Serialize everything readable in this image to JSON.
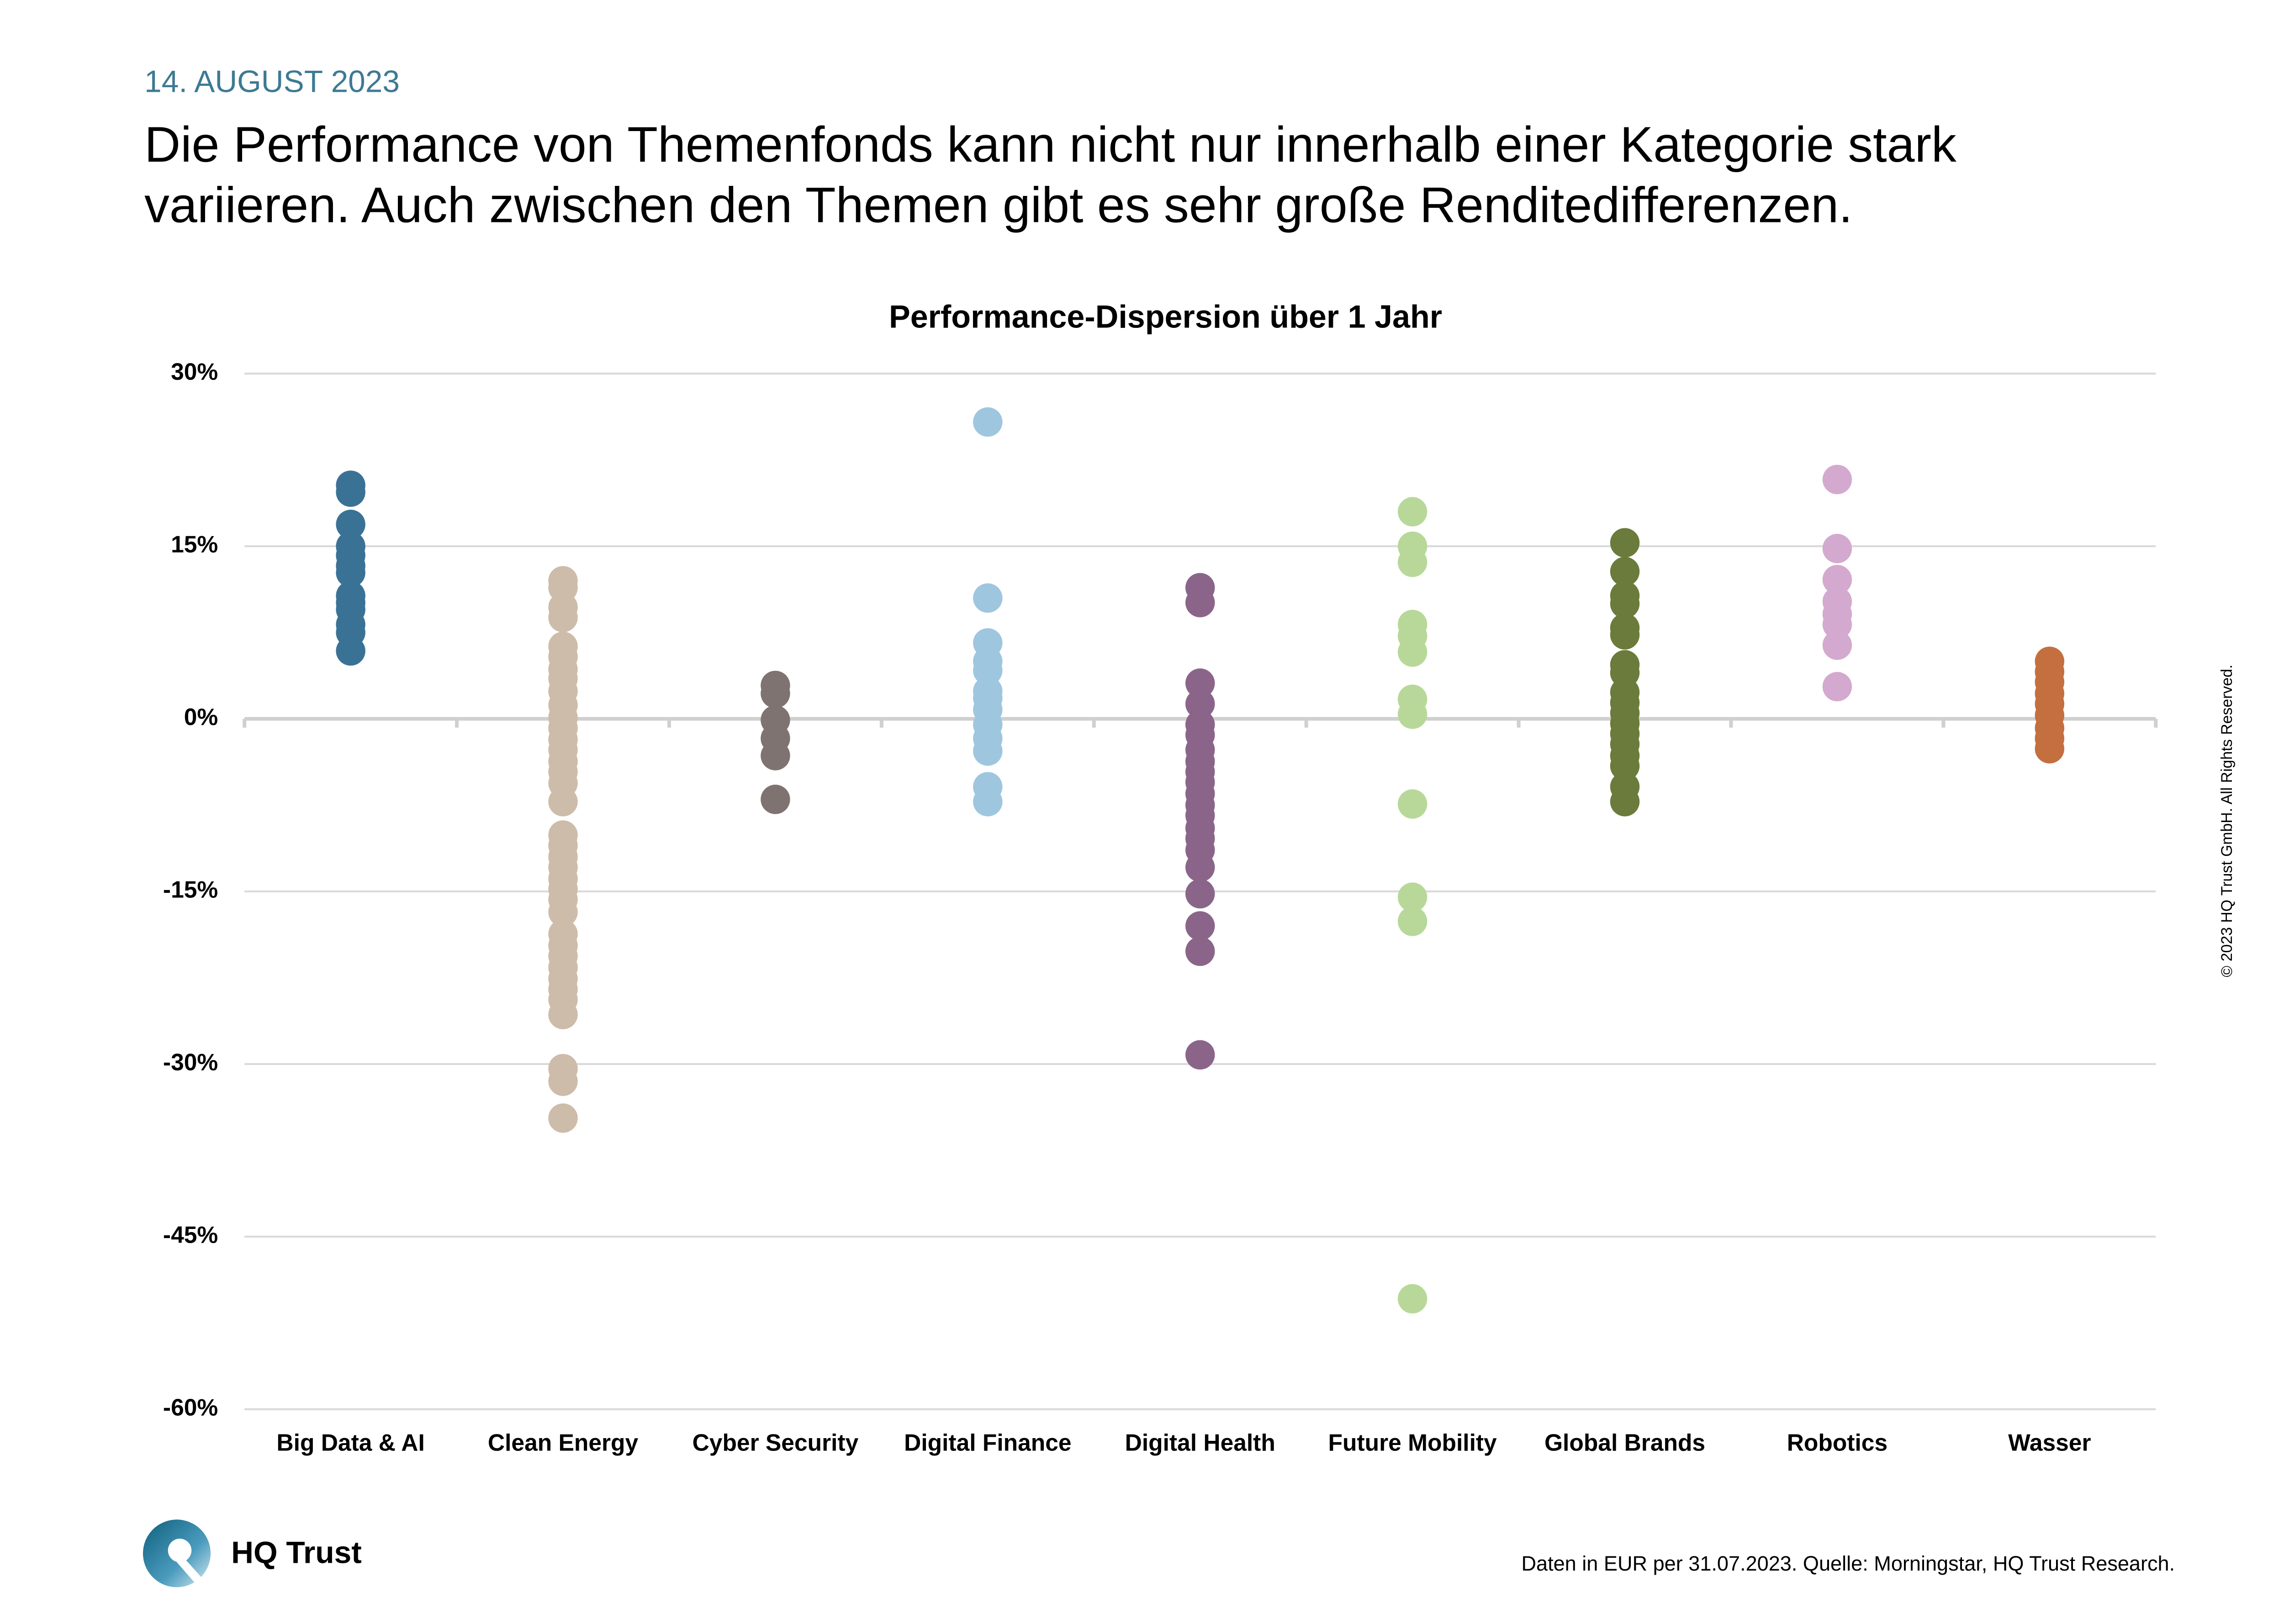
{
  "header": {
    "date": "14. AUGUST 2023",
    "title": [
      "Die Performance von Themenfonds kann nicht nur innerhalb einer Kategorie stark",
      "variieren. Auch zwischen den Themen gibt es sehr große Renditedifferenzen."
    ]
  },
  "chart_data": {
    "type": "strip",
    "title": "Performance-Dispersion über 1 Jahr",
    "ylim": [
      -60,
      30
    ],
    "yticks": [
      {
        "value": 30,
        "label": "30%"
      },
      {
        "value": 15,
        "label": "15%"
      },
      {
        "value": 0,
        "label": "0%"
      },
      {
        "value": -15,
        "label": "-15%"
      },
      {
        "value": -30,
        "label": "-30%"
      },
      {
        "value": -45,
        "label": "-45%"
      },
      {
        "value": -60,
        "label": "-60%"
      }
    ],
    "grid": true,
    "series": [
      {
        "name": "Big Data & AI",
        "color": "#3a7296",
        "values": [
          20.3,
          19.7,
          16.9,
          15,
          14.2,
          13.3,
          12.7,
          10.7,
          10.1,
          9.5,
          8.2,
          7.5,
          5.9
        ]
      },
      {
        "name": "Clean Energy",
        "color": "#cdbcaa",
        "values": [
          12,
          11.4,
          9.7,
          8.8,
          6.3,
          5.4,
          4.3,
          3.5,
          2.4,
          1.2,
          0.1,
          -0.8,
          -1.8,
          -2.7,
          -3.7,
          -4.6,
          -5.6,
          -7.2,
          -10.1,
          -11,
          -12,
          -12.9,
          -13.9,
          -14.8,
          -15.7,
          -16.8,
          -18.7,
          -19.7,
          -20.6,
          -21.6,
          -22.6,
          -23.5,
          -24.4,
          -25.7,
          -30.4,
          -31.5,
          -34.7
        ]
      },
      {
        "name": "Cyber Security",
        "color": "#7f7371",
        "values": [
          2.9,
          2.2,
          -0.1,
          -1.7,
          -3.2,
          -7.0
        ]
      },
      {
        "name": "Digital Finance",
        "color": "#9fc6df",
        "values": [
          25.8,
          10.5,
          6.6,
          5,
          4.2,
          2.4,
          1.8,
          0.8,
          -0.5,
          -1.7,
          -2.8,
          -5.9,
          -7.2
        ]
      },
      {
        "name": "Digital Health",
        "color": "#8a6589",
        "values": [
          11.4,
          10.1,
          3.1,
          1.3,
          -0.5,
          -1.4,
          -2.7,
          -3.7,
          -4.6,
          -5.5,
          -6.5,
          -7.5,
          -8.4,
          -9.5,
          -10.4,
          -11.4,
          -12.9,
          -15.2,
          -18,
          -20.2,
          -29.2
        ]
      },
      {
        "name": "Future Mobility",
        "color": "#b8d89a",
        "values": [
          18,
          15,
          13.6,
          8.2,
          7.2,
          5.8,
          1.7,
          0.4,
          -7.4,
          -15.5,
          -17.6,
          -50.4
        ]
      },
      {
        "name": "Global Brands",
        "color": "#6b7b3b",
        "values": [
          15.3,
          12.8,
          10.7,
          10,
          7.9,
          7.3,
          4.7,
          4,
          2.3,
          1.4,
          0.5,
          -0.4,
          -1.3,
          -2.2,
          -3.2,
          -4.1,
          -5.9,
          -7.2
        ]
      },
      {
        "name": "Robotics",
        "color": "#d4a9cf",
        "values": [
          20.8,
          14.8,
          12.1,
          10.2,
          9.1,
          8.2,
          6.4,
          2.8
        ]
      },
      {
        "name": "Wasser",
        "color": "#c46f3f",
        "values": [
          5,
          4.1,
          3.2,
          2.2,
          1.3,
          0.3,
          -0.8,
          -1.7,
          -2.6
        ]
      }
    ]
  },
  "footer": {
    "logo": "HQ Trust",
    "source": "Daten in EUR per 31.07.2023. Quelle: Morningstar, HQ Trust Research.",
    "copyright": "© 2023 HQ Trust GmbH. All Rights Reserved."
  }
}
